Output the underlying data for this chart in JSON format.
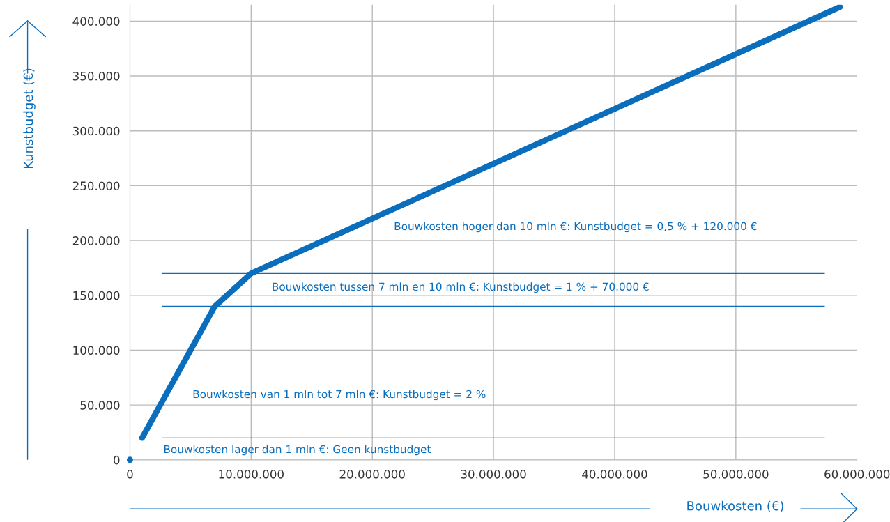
{
  "chart_data": {
    "type": "line",
    "xlabel": "Bouwkosten (€)",
    "ylabel": "Kunstbudget (€)",
    "series": [
      {
        "color": "#0a6ebd",
        "x": [
          1000000,
          7000000,
          10000000,
          58600000
        ],
        "values": [
          20000,
          140000,
          170000,
          413000
        ]
      },
      {
        "type": "scatter",
        "color": "#0a6ebd",
        "x": [
          0
        ],
        "values": [
          0
        ]
      }
    ],
    "xlim": [
      0,
      60000000
    ],
    "ylim": [
      0,
      415000
    ],
    "xticks": [
      0,
      {
        "value": 10000000,
        "label": "10.000.000"
      },
      {
        "value": 20000000,
        "label": "20.000.000"
      },
      {
        "value": 30000000,
        "label": "30.000.000"
      },
      {
        "value": 40000000,
        "label": "40.000.000"
      },
      {
        "value": 50000000,
        "label": "50.000.000"
      },
      {
        "value": 60000000,
        "label": "60.000.000"
      }
    ],
    "yticks": [
      0,
      {
        "value": 50000,
        "label": "50.000"
      },
      {
        "value": 100000,
        "label": "100.000"
      },
      {
        "value": 150000,
        "label": "150.000"
      },
      {
        "value": 200000,
        "label": "200.000"
      },
      {
        "value": 250000,
        "label": "250.000"
      },
      {
        "value": 300000,
        "label": "300.000"
      },
      {
        "value": 350000,
        "label": "350.000"
      },
      {
        "value": 400000,
        "label": "400.000"
      }
    ],
    "ref_lines": [
      {
        "axis": "y",
        "value": 20000,
        "color": "#0a6ebd"
      },
      {
        "axis": "y",
        "value": 140000,
        "color": "#0a6ebd"
      },
      {
        "axis": "y",
        "value": 170000,
        "color": "#0a6ebd"
      }
    ],
    "annotations": [
      "Bouwkosten hoger dan 10 mln €: Kunstbudget = 0,5 % + 120.000 €",
      "Bouwkosten tussen 7 mln en 10 mln €: Kunstbudget = 1 % + 70.000 €",
      "Bouwkosten van 1 mln tot 7 mln €: Kunstbudget = 2 %",
      "Bouwkosten lager dan 1 mln €: Geen kunstbudget"
    ],
    "grid": true,
    "legend": false
  }
}
